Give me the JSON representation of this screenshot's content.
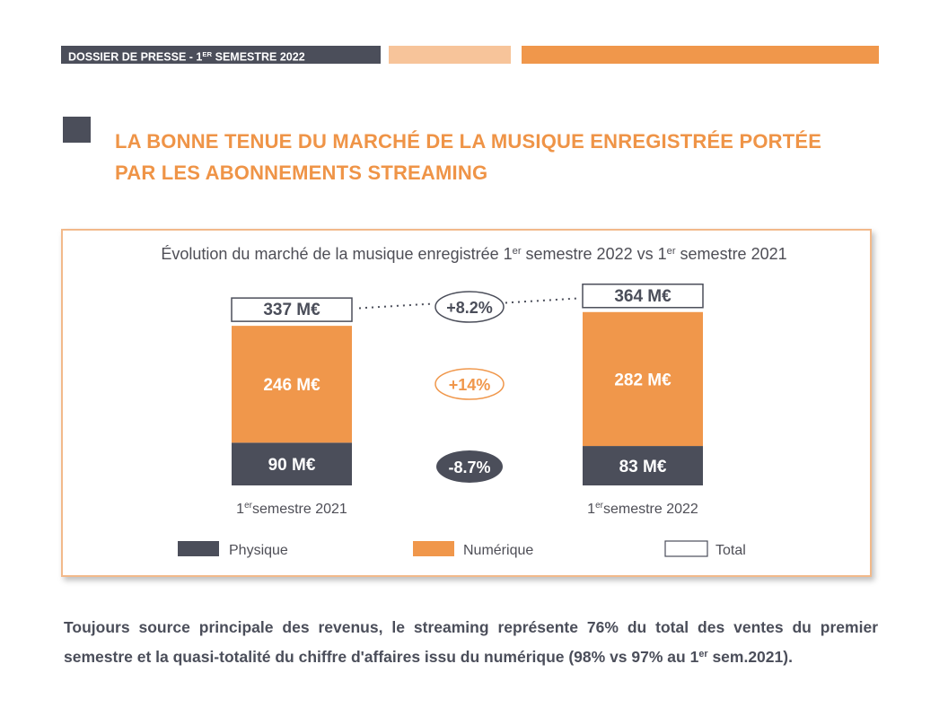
{
  "header": {
    "dossier_prefix": "DOSSIER DE PRESSE - 1",
    "dossier_sup": "ER",
    "dossier_suffix": " SEMESTRE 2022"
  },
  "title": {
    "line1": "LA BONNE TENUE DU MARCHÉ DE LA MUSIQUE ENREGISTRÉE PORTÉE",
    "line2": "PAR LES ABONNEMENTS STREAMING"
  },
  "colors": {
    "physique": "#4b4e5a",
    "numerique": "#f0974b",
    "accent": "#ef9447"
  },
  "chart_data": {
    "type": "bar",
    "stacked": true,
    "title_parts": [
      "Évolution du marché de la musique enregistrée 1",
      "er",
      " semestre 2022 vs 1",
      "er",
      " semestre 2021"
    ],
    "categories": [
      {
        "pre": "1",
        "sup": "er",
        "post": "semestre 2021"
      },
      {
        "pre": "1",
        "sup": "er",
        "post": "semestre 2022"
      }
    ],
    "series": [
      {
        "name": "Physique",
        "values": [
          90,
          83
        ],
        "labels": [
          "90 M€",
          "83 M€"
        ]
      },
      {
        "name": "Numérique",
        "values": [
          246,
          282
        ],
        "labels": [
          "246 M€",
          "282 M€"
        ]
      }
    ],
    "totals": {
      "name": "Total",
      "values": [
        337,
        364
      ],
      "labels": [
        "337 M€",
        "364 M€"
      ]
    },
    "changes": {
      "total": "+8.2%",
      "numerique": "+14%",
      "physique": "-8.7%"
    },
    "legend": [
      "Physique",
      "Numérique",
      "Total"
    ],
    "legend_position": "bottom"
  },
  "body_text": {
    "part1": "Toujours source principale des revenus, le streaming représente 76% du total des ventes du premier semestre et la quasi-totalité du chiffre d'affaires issu du numérique (98% vs 97% au 1",
    "sup": "er",
    "part2": " sem.2021)."
  }
}
